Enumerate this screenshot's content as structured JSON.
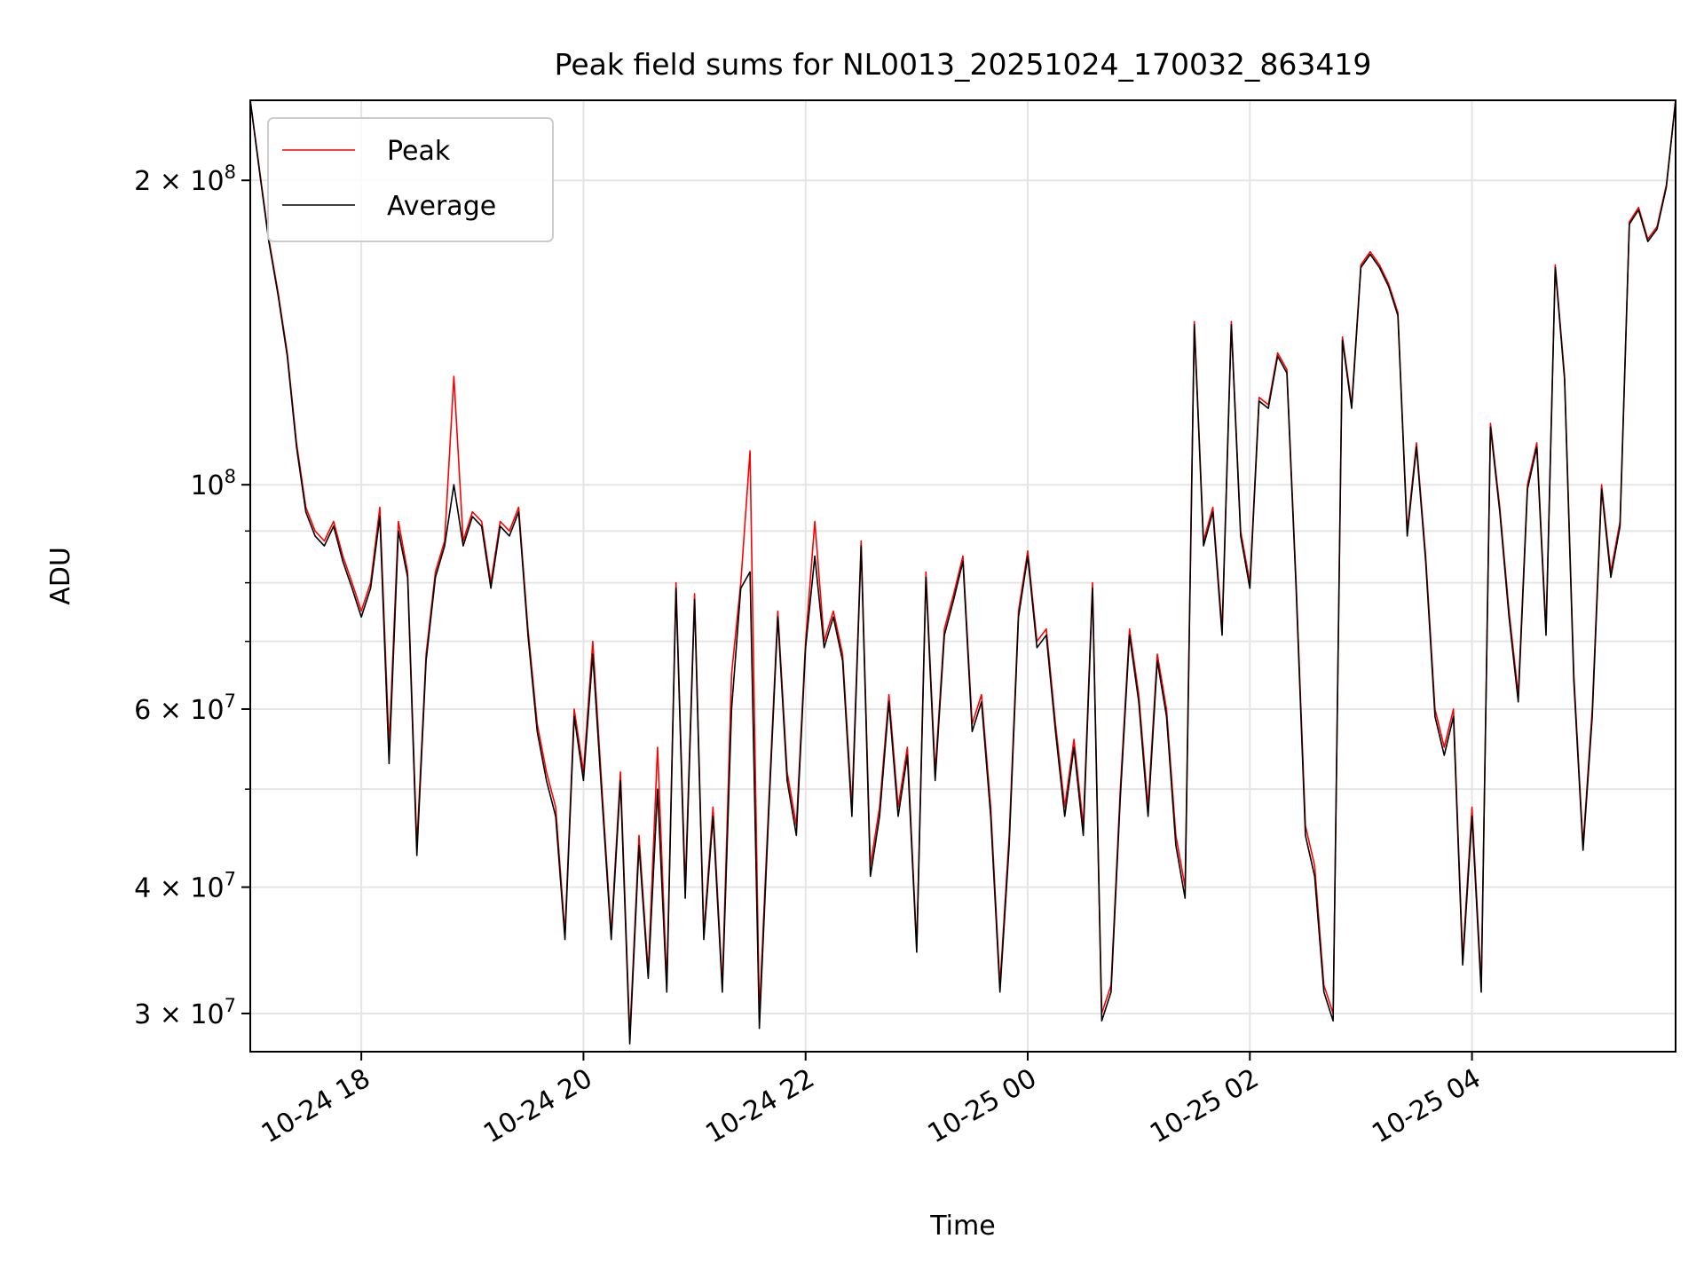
{
  "chart_data": {
    "type": "line",
    "title": "Peak field sums for NL0013_20251024_170032_863419",
    "xlabel": "Time",
    "ylabel": "ADU",
    "yscale": "log",
    "grid": true,
    "legend_position": "upper-left",
    "xlim": [
      "2025-10-24 17:00",
      "2025-10-25 05:50"
    ],
    "ylim": [
      27500000,
      240000000
    ],
    "x_ticks": [
      {
        "t": "2025-10-24 18:00",
        "label": "10-24 18"
      },
      {
        "t": "2025-10-24 20:00",
        "label": "10-24 20"
      },
      {
        "t": "2025-10-24 22:00",
        "label": "10-24 22"
      },
      {
        "t": "2025-10-25 00:00",
        "label": "10-25 00"
      },
      {
        "t": "2025-10-25 02:00",
        "label": "10-25 02"
      },
      {
        "t": "2025-10-25 04:00",
        "label": "10-25 04"
      }
    ],
    "y_ticks": [
      {
        "value": 30000000,
        "label": "3 × 10",
        "exp": "7"
      },
      {
        "value": 40000000,
        "label": "4 × 10",
        "exp": "7"
      },
      {
        "value": 60000000,
        "label": "6 × 10",
        "exp": "7"
      },
      {
        "value": 100000000,
        "label": "10",
        "exp": "8"
      },
      {
        "value": 200000000,
        "label": "2 × 10",
        "exp": "8"
      }
    ],
    "y_minor_ticks": [
      50000000,
      70000000,
      80000000,
      90000000
    ],
    "x": [
      "2025-10-24 17:00",
      "2025-10-24 17:05",
      "2025-10-24 17:10",
      "2025-10-24 17:15",
      "2025-10-24 17:20",
      "2025-10-24 17:25",
      "2025-10-24 17:30",
      "2025-10-24 17:35",
      "2025-10-24 17:40",
      "2025-10-24 17:45",
      "2025-10-24 17:50",
      "2025-10-24 17:55",
      "2025-10-24 18:00",
      "2025-10-24 18:05",
      "2025-10-24 18:10",
      "2025-10-24 18:15",
      "2025-10-24 18:20",
      "2025-10-24 18:25",
      "2025-10-24 18:30",
      "2025-10-24 18:35",
      "2025-10-24 18:40",
      "2025-10-24 18:45",
      "2025-10-24 18:50",
      "2025-10-24 18:55",
      "2025-10-24 19:00",
      "2025-10-24 19:05",
      "2025-10-24 19:10",
      "2025-10-24 19:15",
      "2025-10-24 19:20",
      "2025-10-24 19:25",
      "2025-10-24 19:30",
      "2025-10-24 19:35",
      "2025-10-24 19:40",
      "2025-10-24 19:45",
      "2025-10-24 19:50",
      "2025-10-24 19:55",
      "2025-10-24 20:00",
      "2025-10-24 20:05",
      "2025-10-24 20:10",
      "2025-10-24 20:15",
      "2025-10-24 20:20",
      "2025-10-24 20:25",
      "2025-10-24 20:30",
      "2025-10-24 20:35",
      "2025-10-24 20:40",
      "2025-10-24 20:45",
      "2025-10-24 20:50",
      "2025-10-24 20:55",
      "2025-10-24 21:00",
      "2025-10-24 21:05",
      "2025-10-24 21:10",
      "2025-10-24 21:15",
      "2025-10-24 21:20",
      "2025-10-24 21:25",
      "2025-10-24 21:30",
      "2025-10-24 21:35",
      "2025-10-24 21:40",
      "2025-10-24 21:45",
      "2025-10-24 21:50",
      "2025-10-24 21:55",
      "2025-10-24 22:00",
      "2025-10-24 22:05",
      "2025-10-24 22:10",
      "2025-10-24 22:15",
      "2025-10-24 22:20",
      "2025-10-24 22:25",
      "2025-10-24 22:30",
      "2025-10-24 22:35",
      "2025-10-24 22:40",
      "2025-10-24 22:45",
      "2025-10-24 22:50",
      "2025-10-24 22:55",
      "2025-10-24 23:00",
      "2025-10-24 23:05",
      "2025-10-24 23:10",
      "2025-10-24 23:15",
      "2025-10-24 23:20",
      "2025-10-24 23:25",
      "2025-10-24 23:30",
      "2025-10-24 23:35",
      "2025-10-24 23:40",
      "2025-10-24 23:45",
      "2025-10-24 23:50",
      "2025-10-24 23:55",
      "2025-10-25 00:00",
      "2025-10-25 00:05",
      "2025-10-25 00:10",
      "2025-10-25 00:15",
      "2025-10-25 00:20",
      "2025-10-25 00:25",
      "2025-10-25 00:30",
      "2025-10-25 00:35",
      "2025-10-25 00:40",
      "2025-10-25 00:45",
      "2025-10-25 00:50",
      "2025-10-25 00:55",
      "2025-10-25 01:00",
      "2025-10-25 01:05",
      "2025-10-25 01:10",
      "2025-10-25 01:15",
      "2025-10-25 01:20",
      "2025-10-25 01:25",
      "2025-10-25 01:30",
      "2025-10-25 01:35",
      "2025-10-25 01:40",
      "2025-10-25 01:45",
      "2025-10-25 01:50",
      "2025-10-25 01:55",
      "2025-10-25 02:00",
      "2025-10-25 02:05",
      "2025-10-25 02:10",
      "2025-10-25 02:15",
      "2025-10-25 02:20",
      "2025-10-25 02:25",
      "2025-10-25 02:30",
      "2025-10-25 02:35",
      "2025-10-25 02:40",
      "2025-10-25 02:45",
      "2025-10-25 02:50",
      "2025-10-25 02:55",
      "2025-10-25 03:00",
      "2025-10-25 03:05",
      "2025-10-25 03:10",
      "2025-10-25 03:15",
      "2025-10-25 03:20",
      "2025-10-25 03:25",
      "2025-10-25 03:30",
      "2025-10-25 03:35",
      "2025-10-25 03:40",
      "2025-10-25 03:45",
      "2025-10-25 03:50",
      "2025-10-25 03:55",
      "2025-10-25 04:00",
      "2025-10-25 04:05",
      "2025-10-25 04:10",
      "2025-10-25 04:15",
      "2025-10-25 04:20",
      "2025-10-25 04:25",
      "2025-10-25 04:30",
      "2025-10-25 04:35",
      "2025-10-25 04:40",
      "2025-10-25 04:45",
      "2025-10-25 04:50",
      "2025-10-25 04:55",
      "2025-10-25 05:00",
      "2025-10-25 05:05",
      "2025-10-25 05:10",
      "2025-10-25 05:15",
      "2025-10-25 05:20",
      "2025-10-25 05:25",
      "2025-10-25 05:30",
      "2025-10-25 05:35",
      "2025-10-25 05:40",
      "2025-10-25 05:45",
      "2025-10-25 05:50"
    ],
    "series": [
      {
        "name": "Peak",
        "color": "#ff0000",
        "values": [
          240000000,
          205000000,
          175000000,
          155000000,
          135000000,
          110000000,
          95000000,
          90000000,
          88000000,
          92000000,
          85000000,
          80000000,
          75000000,
          80000000,
          95000000,
          55000000,
          92000000,
          82000000,
          44000000,
          68000000,
          82000000,
          88000000,
          128000000,
          88000000,
          94000000,
          92000000,
          80000000,
          92000000,
          90000000,
          95000000,
          72000000,
          58000000,
          52000000,
          48000000,
          36000000,
          60000000,
          52000000,
          70000000,
          50000000,
          36000000,
          52000000,
          28500000,
          45000000,
          33000000,
          55000000,
          32000000,
          80000000,
          40000000,
          78000000,
          36000000,
          48000000,
          32000000,
          65000000,
          80000000,
          108000000,
          30000000,
          48000000,
          75000000,
          52000000,
          46000000,
          70000000,
          92000000,
          70000000,
          75000000,
          68000000,
          48000000,
          88000000,
          42000000,
          48000000,
          62000000,
          48000000,
          55000000,
          35000000,
          82000000,
          52000000,
          72000000,
          78000000,
          85000000,
          58000000,
          62000000,
          48000000,
          32000000,
          45000000,
          75000000,
          86000000,
          70000000,
          72000000,
          58000000,
          48000000,
          56000000,
          46000000,
          80000000,
          30000000,
          32000000,
          50000000,
          72000000,
          62000000,
          48000000,
          68000000,
          60000000,
          45000000,
          40000000,
          145000000,
          88000000,
          95000000,
          72000000,
          145000000,
          90000000,
          80000000,
          122000000,
          120000000,
          135000000,
          130000000,
          80000000,
          46000000,
          42000000,
          32000000,
          30000000,
          140000000,
          120000000,
          165000000,
          170000000,
          165000000,
          158000000,
          148000000,
          90000000,
          110000000,
          85000000,
          60000000,
          55000000,
          60000000,
          34000000,
          48000000,
          32000000,
          115000000,
          95000000,
          75000000,
          62000000,
          100000000,
          110000000,
          72000000,
          165000000,
          128000000,
          65000000,
          44000000,
          60000000,
          100000000,
          82000000,
          92000000,
          182000000,
          188000000,
          175000000,
          180000000,
          198000000,
          240000000
        ]
      },
      {
        "name": "Average",
        "color": "#000000",
        "values": [
          240000000,
          204000000,
          174000000,
          154000000,
          134000000,
          109000000,
          94000000,
          89000000,
          87000000,
          91000000,
          84000000,
          79000000,
          74000000,
          79000000,
          93000000,
          53000000,
          90000000,
          81000000,
          43000000,
          67000000,
          81000000,
          87000000,
          100000000,
          87000000,
          93000000,
          91000000,
          79000000,
          91000000,
          89000000,
          94000000,
          71000000,
          57000000,
          51000000,
          47000000,
          35500000,
          59000000,
          51000000,
          68000000,
          49000000,
          35500000,
          51000000,
          28000000,
          44000000,
          32500000,
          50000000,
          31500000,
          79000000,
          39000000,
          77000000,
          35500000,
          47000000,
          31500000,
          60000000,
          79000000,
          82000000,
          29000000,
          47000000,
          74000000,
          51000000,
          45000000,
          69000000,
          85000000,
          69000000,
          74000000,
          67000000,
          47000000,
          87000000,
          41000000,
          47000000,
          61000000,
          47000000,
          54000000,
          34500000,
          81000000,
          51000000,
          71000000,
          77000000,
          84000000,
          57000000,
          61000000,
          47000000,
          31500000,
          44000000,
          74000000,
          85000000,
          69000000,
          71000000,
          57000000,
          47000000,
          55000000,
          45000000,
          79000000,
          29500000,
          31500000,
          49000000,
          71000000,
          61000000,
          47000000,
          67000000,
          59000000,
          44000000,
          39000000,
          144000000,
          87000000,
          94000000,
          71000000,
          144000000,
          89000000,
          79000000,
          121000000,
          119000000,
          134000000,
          129000000,
          79000000,
          45000000,
          41000000,
          31500000,
          29500000,
          139000000,
          119000000,
          164000000,
          169000000,
          164000000,
          157000000,
          147000000,
          89000000,
          109000000,
          84000000,
          59000000,
          54000000,
          59000000,
          33500000,
          47000000,
          31500000,
          114000000,
          94000000,
          74000000,
          61000000,
          99000000,
          109000000,
          71000000,
          164000000,
          127000000,
          64000000,
          43500000,
          59000000,
          99000000,
          81000000,
          91000000,
          181000000,
          187000000,
          174000000,
          179000000,
          197000000,
          240000000
        ]
      }
    ]
  }
}
